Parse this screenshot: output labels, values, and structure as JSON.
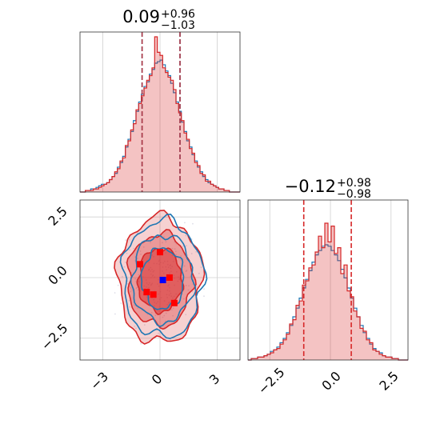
{
  "chart_data": [
    {
      "type": "histogram",
      "panel": "marginal-x",
      "title": {
        "median": "0.09",
        "plus": "+0.96",
        "minus": "−1.03"
      },
      "xlim": [
        -4.2,
        4.2
      ],
      "grid": true,
      "quantile_lines": [
        -0.94,
        1.05
      ],
      "bin_edges": [
        -4.2,
        4.2
      ],
      "series": [
        {
          "name": "",
          "color": "#1f77b4",
          "values": [
            0,
            0,
            0.01,
            0.01,
            0.02,
            0.02,
            0.03,
            0.04,
            0.05,
            0.05,
            0.06,
            0.08,
            0.1,
            0.12,
            0.16,
            0.19,
            0.23,
            0.29,
            0.34,
            0.39,
            0.46,
            0.52,
            0.58,
            0.63,
            0.68,
            0.71,
            0.76,
            0.79,
            0.83,
            0.84,
            0.85,
            0.82,
            0.78,
            0.75,
            0.7,
            0.64,
            0.58,
            0.52,
            0.45,
            0.39,
            0.33,
            0.29,
            0.24,
            0.2,
            0.16,
            0.13,
            0.1,
            0.08,
            0.06,
            0.05,
            0.04,
            0.03,
            0.02,
            0.02,
            0.01,
            0.01,
            0,
            0,
            0,
            0
          ]
        },
        {
          "name": "",
          "color": "#d62728",
          "values": [
            0,
            0,
            0.01,
            0.01,
            0.01,
            0.02,
            0.02,
            0.03,
            0.04,
            0.05,
            0.06,
            0.08,
            0.1,
            0.13,
            0.15,
            0.2,
            0.22,
            0.3,
            0.33,
            0.4,
            0.44,
            0.53,
            0.57,
            0.62,
            0.67,
            0.72,
            0.75,
            0.8,
            1.0,
            0.9,
            0.88,
            0.8,
            0.77,
            0.74,
            0.72,
            0.66,
            0.57,
            0.51,
            0.46,
            0.38,
            0.34,
            0.28,
            0.25,
            0.19,
            0.17,
            0.12,
            0.11,
            0.07,
            0.07,
            0.05,
            0.04,
            0.03,
            0.02,
            0.02,
            0.01,
            0.01,
            0,
            0,
            0,
            0
          ]
        }
      ]
    },
    {
      "type": "histogram",
      "panel": "marginal-y",
      "title": {
        "median": "−0.12",
        "plus": "+0.98",
        "minus": "−0.98"
      },
      "xlim": [
        -3.4,
        3.2
      ],
      "xticks": [
        "−2.5",
        "0.0",
        "2.5"
      ],
      "grid": true,
      "quantile_lines": [
        -1.1,
        0.86
      ],
      "series": [
        {
          "name": "",
          "color": "#1f77b4",
          "values": [
            0,
            0.01,
            0.01,
            0.02,
            0.02,
            0.03,
            0.04,
            0.06,
            0.07,
            0.09,
            0.12,
            0.15,
            0.19,
            0.24,
            0.3,
            0.36,
            0.43,
            0.5,
            0.56,
            0.62,
            0.68,
            0.73,
            0.76,
            0.79,
            0.8,
            0.79,
            0.76,
            0.73,
            0.69,
            0.63,
            0.57,
            0.5,
            0.43,
            0.36,
            0.3,
            0.24,
            0.19,
            0.15,
            0.11,
            0.08,
            0.06,
            0.05,
            0.03,
            0.02,
            0.02,
            0.01,
            0.01,
            0,
            0,
            0
          ]
        },
        {
          "name": "",
          "color": "#d62728",
          "values": [
            0,
            0.01,
            0.01,
            0.02,
            0.02,
            0.03,
            0.04,
            0.05,
            0.07,
            0.08,
            0.11,
            0.14,
            0.18,
            0.25,
            0.28,
            0.38,
            0.41,
            0.52,
            0.55,
            0.64,
            0.66,
            0.75,
            0.86,
            0.78,
            0.95,
            0.82,
            0.93,
            0.74,
            0.78,
            0.6,
            0.66,
            0.48,
            0.44,
            0.34,
            0.3,
            0.22,
            0.2,
            0.14,
            0.12,
            0.07,
            0.06,
            0.04,
            0.03,
            0.02,
            0.02,
            0.01,
            0.01,
            0,
            0,
            0
          ]
        }
      ]
    },
    {
      "type": "scatter",
      "panel": "joint",
      "xlim": [
        -4.2,
        4.2
      ],
      "ylim": [
        -3.4,
        3.2
      ],
      "xticks": [
        "−3",
        "0",
        "3"
      ],
      "yticks": [
        "−2.5",
        "0.0",
        "2.5"
      ],
      "grid": true,
      "contours": [
        {
          "color": "#1f77b4",
          "rx": [
            2.1,
            1.6,
            1.1
          ],
          "ry": [
            2.4,
            1.8,
            1.25
          ],
          "cx": 0.15,
          "cy": -0.05
        },
        {
          "color": "#d62728",
          "rx": [
            2.2,
            1.7,
            1.15
          ],
          "ry": [
            2.6,
            1.9,
            1.3
          ],
          "cx": 0.0,
          "cy": -0.1
        }
      ],
      "highlight_points": [
        {
          "x": -1.05,
          "y": 0.55,
          "color": "#ff0000"
        },
        {
          "x": 0.0,
          "y": 1.05,
          "color": "#ff0000"
        },
        {
          "x": 0.5,
          "y": 0.0,
          "color": "#ff0000"
        },
        {
          "x": -0.7,
          "y": -0.6,
          "color": "#ff0000"
        },
        {
          "x": -0.35,
          "y": -0.7,
          "color": "#ff0000"
        },
        {
          "x": 0.75,
          "y": -1.05,
          "color": "#ff0000"
        },
        {
          "x": 0.15,
          "y": -0.1,
          "color": "#0000ff"
        }
      ]
    }
  ]
}
